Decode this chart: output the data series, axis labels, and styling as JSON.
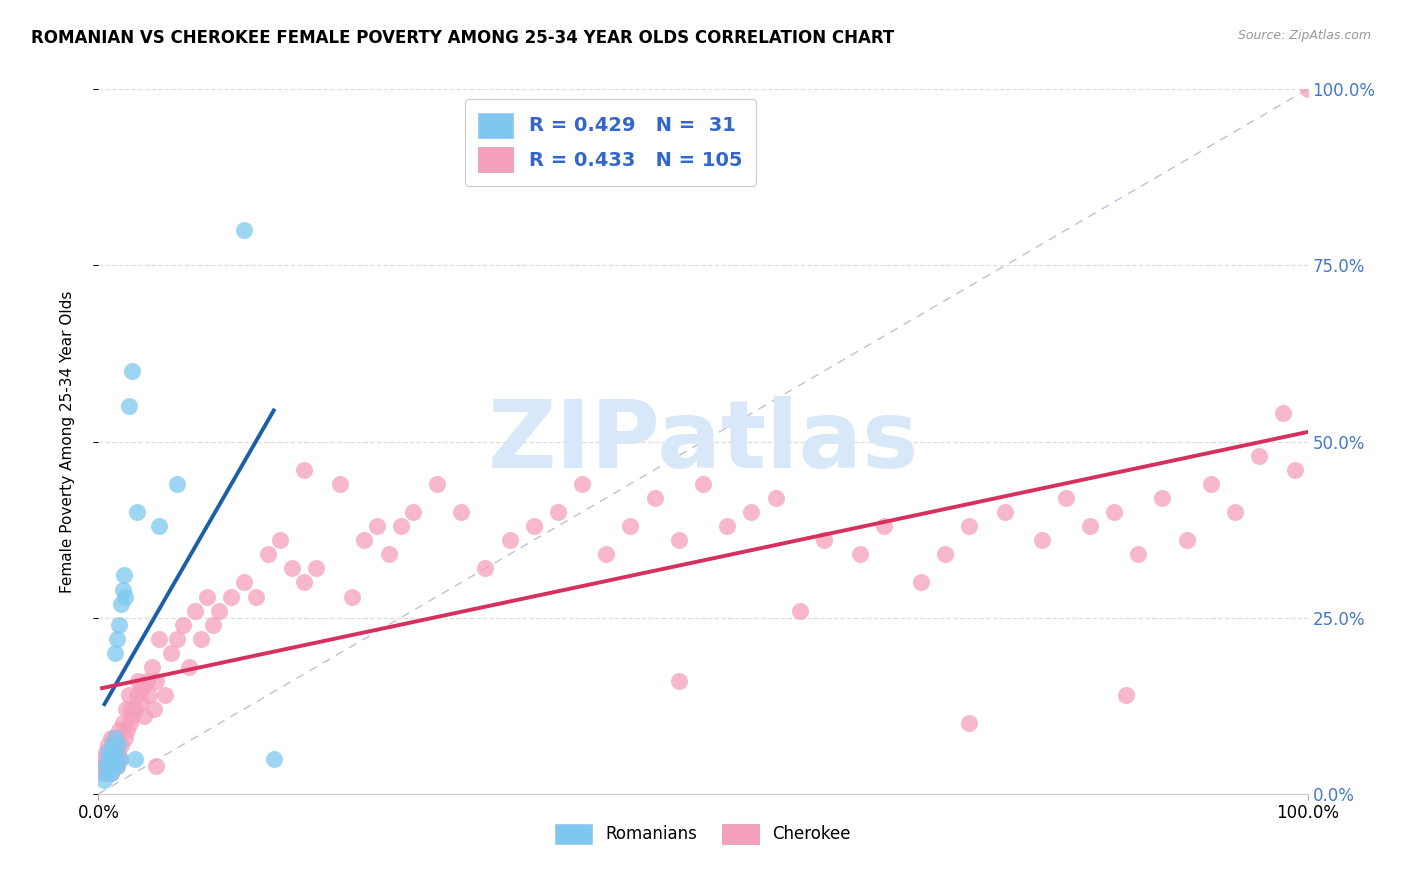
{
  "title": "ROMANIAN VS CHEROKEE FEMALE POVERTY AMONG 25-34 YEAR OLDS CORRELATION CHART",
  "source": "Source: ZipAtlas.com",
  "ylabel": "Female Poverty Among 25-34 Year Olds",
  "xlim": [
    0,
    1
  ],
  "ylim": [
    0,
    1
  ],
  "ytick_labels": [
    "0.0%",
    "25.0%",
    "50.0%",
    "75.0%",
    "100.0%"
  ],
  "ytick_positions": [
    0.0,
    0.25,
    0.5,
    0.75,
    1.0
  ],
  "xtick_labels": [
    "0.0%",
    "100.0%"
  ],
  "xtick_positions": [
    0.0,
    1.0
  ],
  "legend_r_romanian": "R = 0.429",
  "legend_n_romanian": "N =  31",
  "legend_r_cherokee": "R = 0.433",
  "legend_n_cherokee": "N = 105",
  "romanian_color": "#7ec8f0",
  "cherokee_color": "#f5a0ba",
  "trend_romanian_color": "#1a5fa8",
  "trend_cherokee_color": "#d63060",
  "diagonal_color": "#c0c0d8",
  "watermark_text": "ZIPatlas",
  "watermark_color": "#d8e8f8",
  "romanian_scatter_x": [
    0.005,
    0.006,
    0.007,
    0.008,
    0.008,
    0.009,
    0.01,
    0.01,
    0.011,
    0.012,
    0.012,
    0.013,
    0.014,
    0.014,
    0.015,
    0.015,
    0.016,
    0.017,
    0.018,
    0.019,
    0.02,
    0.021,
    0.022,
    0.025,
    0.028,
    0.03,
    0.032,
    0.05,
    0.065,
    0.12,
    0.145
  ],
  "romanian_scatter_y": [
    0.02,
    0.04,
    0.03,
    0.05,
    0.06,
    0.04,
    0.03,
    0.05,
    0.07,
    0.04,
    0.06,
    0.05,
    0.08,
    0.2,
    0.04,
    0.22,
    0.07,
    0.24,
    0.05,
    0.27,
    0.29,
    0.31,
    0.28,
    0.55,
    0.6,
    0.05,
    0.4,
    0.38,
    0.44,
    0.8,
    0.05
  ],
  "cherokee_scatter_x": [
    0.003,
    0.004,
    0.005,
    0.006,
    0.007,
    0.008,
    0.009,
    0.01,
    0.01,
    0.011,
    0.012,
    0.013,
    0.014,
    0.015,
    0.015,
    0.016,
    0.017,
    0.018,
    0.019,
    0.02,
    0.022,
    0.023,
    0.024,
    0.025,
    0.026,
    0.027,
    0.028,
    0.03,
    0.032,
    0.033,
    0.035,
    0.036,
    0.038,
    0.04,
    0.042,
    0.044,
    0.046,
    0.048,
    0.05,
    0.055,
    0.06,
    0.065,
    0.07,
    0.075,
    0.08,
    0.085,
    0.09,
    0.095,
    0.1,
    0.11,
    0.12,
    0.13,
    0.14,
    0.15,
    0.16,
    0.17,
    0.18,
    0.2,
    0.21,
    0.22,
    0.23,
    0.24,
    0.25,
    0.26,
    0.28,
    0.3,
    0.32,
    0.34,
    0.36,
    0.38,
    0.4,
    0.42,
    0.44,
    0.46,
    0.48,
    0.5,
    0.52,
    0.54,
    0.56,
    0.58,
    0.6,
    0.63,
    0.65,
    0.68,
    0.7,
    0.72,
    0.75,
    0.78,
    0.8,
    0.82,
    0.84,
    0.86,
    0.88,
    0.9,
    0.92,
    0.94,
    0.96,
    0.98,
    0.99,
    1.0,
    0.048,
    0.17,
    0.48,
    0.85,
    0.72
  ],
  "cherokee_scatter_y": [
    0.04,
    0.05,
    0.03,
    0.06,
    0.04,
    0.07,
    0.05,
    0.08,
    0.03,
    0.04,
    0.06,
    0.08,
    0.05,
    0.04,
    0.07,
    0.06,
    0.09,
    0.05,
    0.07,
    0.1,
    0.08,
    0.12,
    0.09,
    0.14,
    0.1,
    0.12,
    0.11,
    0.12,
    0.14,
    0.16,
    0.13,
    0.15,
    0.11,
    0.16,
    0.14,
    0.18,
    0.12,
    0.16,
    0.22,
    0.14,
    0.2,
    0.22,
    0.24,
    0.18,
    0.26,
    0.22,
    0.28,
    0.24,
    0.26,
    0.28,
    0.3,
    0.28,
    0.34,
    0.36,
    0.32,
    0.3,
    0.32,
    0.44,
    0.28,
    0.36,
    0.38,
    0.34,
    0.38,
    0.4,
    0.44,
    0.4,
    0.32,
    0.36,
    0.38,
    0.4,
    0.44,
    0.34,
    0.38,
    0.42,
    0.36,
    0.44,
    0.38,
    0.4,
    0.42,
    0.26,
    0.36,
    0.34,
    0.38,
    0.3,
    0.34,
    0.38,
    0.4,
    0.36,
    0.42,
    0.38,
    0.4,
    0.34,
    0.42,
    0.36,
    0.44,
    0.4,
    0.48,
    0.54,
    0.46,
    1.0,
    0.04,
    0.46,
    0.16,
    0.14,
    0.1
  ]
}
